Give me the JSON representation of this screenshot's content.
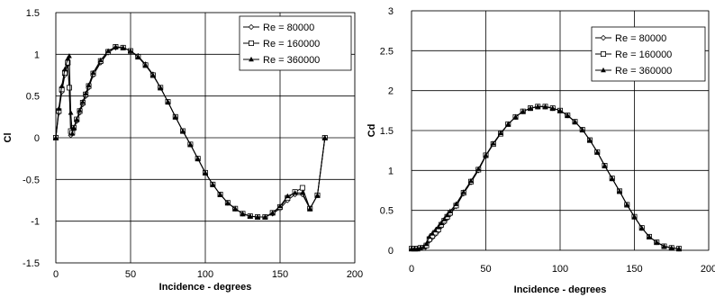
{
  "chart_data": [
    {
      "type": "line",
      "xlabel": "Incidence - degrees",
      "ylabel": "Cl",
      "xlim": [
        0,
        200
      ],
      "ylim": [
        -1.5,
        1.5
      ],
      "xticks": [
        "0",
        "50",
        "100",
        "150",
        "200"
      ],
      "yticks": [
        "-1.5",
        "-1",
        "-0.5",
        "0",
        "0.5",
        "1",
        "1.5"
      ],
      "grid": true,
      "legend": "top-right",
      "x": [
        0,
        2,
        4,
        6,
        8,
        9,
        10,
        11,
        12,
        14,
        16,
        18,
        20,
        22,
        25,
        30,
        35,
        40,
        45,
        50,
        55,
        60,
        65,
        70,
        75,
        80,
        85,
        90,
        95,
        100,
        105,
        110,
        115,
        120,
        125,
        130,
        135,
        140,
        145,
        150,
        155,
        160,
        165,
        170,
        175,
        180
      ],
      "series": [
        {
          "name": "Re = 80000",
          "marker": "diamond",
          "values": [
            0,
            0.3,
            0.55,
            0.75,
            0.88,
            0.6,
            0.03,
            0.05,
            0.1,
            0.2,
            0.3,
            0.4,
            0.5,
            0.6,
            0.75,
            0.9,
            1.02,
            1.08,
            1.08,
            1.04,
            0.98,
            0.88,
            0.76,
            0.6,
            0.43,
            0.25,
            0.08,
            -0.08,
            -0.25,
            -0.42,
            -0.56,
            -0.68,
            -0.78,
            -0.85,
            -0.91,
            -0.94,
            -0.95,
            -0.95,
            -0.91,
            -0.85,
            -0.75,
            -0.68,
            -0.68,
            -0.85,
            -0.69,
            0
          ]
        },
        {
          "name": "Re = 160000",
          "marker": "square",
          "values": [
            0,
            0.32,
            0.58,
            0.78,
            0.9,
            0.6,
            0.08,
            0.06,
            0.12,
            0.22,
            0.32,
            0.42,
            0.52,
            0.62,
            0.77,
            0.92,
            1.03,
            1.09,
            1.08,
            1.04,
            0.97,
            0.87,
            0.75,
            0.6,
            0.43,
            0.25,
            0.08,
            -0.08,
            -0.25,
            -0.42,
            -0.56,
            -0.68,
            -0.78,
            -0.85,
            -0.91,
            -0.94,
            -0.95,
            -0.95,
            -0.9,
            -0.83,
            -0.72,
            -0.65,
            -0.6,
            -0.85,
            -0.69,
            0
          ]
        },
        {
          "name": "Re = 360000",
          "marker": "triangle",
          "values": [
            0,
            0.35,
            0.62,
            0.82,
            0.95,
            0.98,
            0.3,
            0.05,
            0.12,
            0.22,
            0.33,
            0.43,
            0.53,
            0.63,
            0.78,
            0.93,
            1.04,
            1.09,
            1.08,
            1.04,
            0.97,
            0.87,
            0.75,
            0.6,
            0.43,
            0.25,
            0.08,
            -0.08,
            -0.25,
            -0.42,
            -0.56,
            -0.68,
            -0.78,
            -0.85,
            -0.91,
            -0.94,
            -0.95,
            -0.95,
            -0.9,
            -0.82,
            -0.7,
            -0.66,
            -0.66,
            -0.85,
            -0.69,
            0
          ]
        }
      ]
    },
    {
      "type": "line",
      "xlabel": "Incidence - degrees",
      "ylabel": "Cd",
      "xlim": [
        0,
        200
      ],
      "ylim": [
        0,
        3
      ],
      "xticks": [
        "0",
        "50",
        "100",
        "150",
        "200"
      ],
      "yticks": [
        "0",
        "0.5",
        "1",
        "1.5",
        "2",
        "2.5",
        "3"
      ],
      "grid": true,
      "legend": "top-right",
      "x": [
        0,
        2,
        4,
        6,
        8,
        10,
        12,
        14,
        16,
        18,
        20,
        22,
        24,
        26,
        30,
        35,
        40,
        45,
        50,
        55,
        60,
        65,
        70,
        75,
        80,
        85,
        90,
        95,
        100,
        105,
        110,
        115,
        120,
        125,
        130,
        135,
        140,
        145,
        150,
        155,
        160,
        165,
        170,
        175,
        180
      ],
      "series": [
        {
          "name": "Re = 80000",
          "marker": "diamond",
          "values": [
            0.02,
            0.02,
            0.02,
            0.03,
            0.03,
            0.05,
            0.12,
            0.16,
            0.2,
            0.24,
            0.3,
            0.35,
            0.4,
            0.45,
            0.55,
            0.71,
            0.85,
            1.0,
            1.18,
            1.33,
            1.46,
            1.58,
            1.67,
            1.74,
            1.78,
            1.8,
            1.8,
            1.78,
            1.75,
            1.69,
            1.61,
            1.51,
            1.38,
            1.23,
            1.06,
            0.9,
            0.74,
            0.57,
            0.42,
            0.28,
            0.17,
            0.1,
            0.05,
            0.03,
            0.02
          ]
        },
        {
          "name": "Re = 160000",
          "marker": "square",
          "values": [
            0.02,
            0.02,
            0.02,
            0.03,
            0.03,
            0.06,
            0.14,
            0.18,
            0.22,
            0.26,
            0.32,
            0.37,
            0.42,
            0.47,
            0.56,
            0.72,
            0.86,
            1.01,
            1.19,
            1.33,
            1.46,
            1.58,
            1.67,
            1.74,
            1.78,
            1.8,
            1.8,
            1.78,
            1.75,
            1.69,
            1.61,
            1.51,
            1.38,
            1.23,
            1.06,
            0.9,
            0.74,
            0.57,
            0.42,
            0.28,
            0.17,
            0.1,
            0.05,
            0.03,
            0.02
          ]
        },
        {
          "name": "Re = 360000",
          "marker": "triangle",
          "values": [
            0.02,
            0.02,
            0.02,
            0.03,
            0.04,
            0.08,
            0.17,
            0.21,
            0.25,
            0.29,
            0.34,
            0.39,
            0.44,
            0.49,
            0.58,
            0.73,
            0.87,
            1.02,
            1.19,
            1.34,
            1.47,
            1.58,
            1.67,
            1.74,
            1.78,
            1.8,
            1.8,
            1.78,
            1.75,
            1.69,
            1.61,
            1.51,
            1.38,
            1.23,
            1.06,
            0.9,
            0.74,
            0.57,
            0.42,
            0.28,
            0.17,
            0.1,
            0.05,
            0.03,
            0.02
          ]
        }
      ]
    }
  ]
}
